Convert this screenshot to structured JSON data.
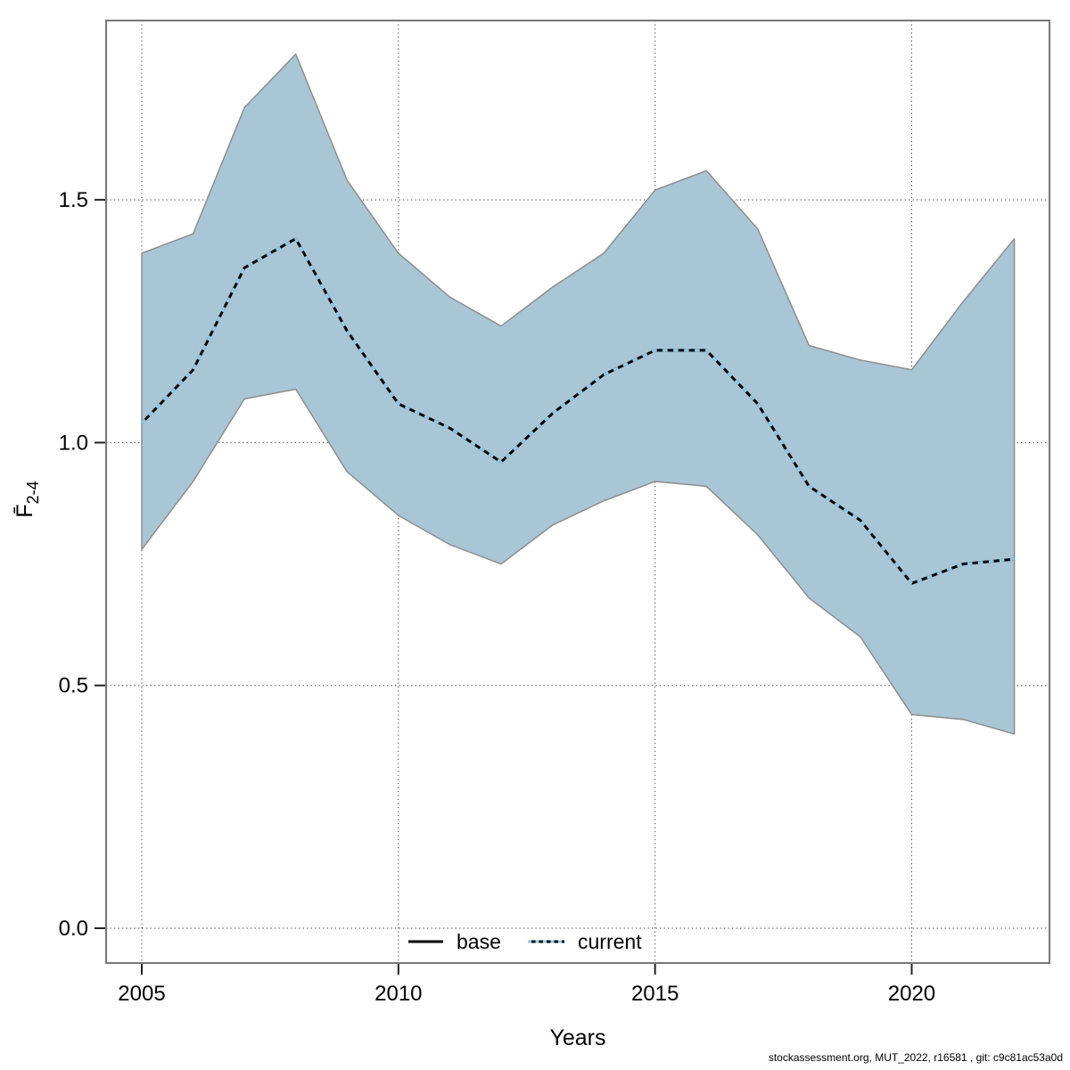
{
  "chart_data": {
    "type": "line",
    "title": "",
    "xlabel": "Years",
    "ylabel": "F̄2-4",
    "ylabel_main": "F̄",
    "ylabel_sub": "2-4",
    "x": [
      2005,
      2006,
      2007,
      2008,
      2009,
      2010,
      2011,
      2012,
      2013,
      2014,
      2015,
      2016,
      2017,
      2018,
      2019,
      2020,
      2021,
      2022
    ],
    "x_ticks": [
      2005,
      2010,
      2015,
      2020
    ],
    "y_ticks": [
      0.0,
      0.5,
      1.0,
      1.5
    ],
    "y_tick_labels": [
      "0.0",
      "0.5",
      "1.0",
      "1.5"
    ],
    "xlim": [
      2004.3,
      2022.7
    ],
    "ylim": [
      -0.07,
      1.87
    ],
    "grid": "dotted",
    "legend_position": "bottom-center-inside",
    "series": [
      {
        "name": "base",
        "line": "solid",
        "color": "#000000",
        "values": [
          1.04,
          1.15,
          1.36,
          1.42,
          1.23,
          1.08,
          1.03,
          0.96,
          1.06,
          1.14,
          1.19,
          1.19,
          1.08,
          0.91,
          0.84,
          0.71,
          0.75,
          0.76
        ]
      },
      {
        "name": "current",
        "line": "dotted",
        "color": "#8fcbe8",
        "values": [
          1.04,
          1.15,
          1.36,
          1.42,
          1.23,
          1.08,
          1.03,
          0.96,
          1.06,
          1.14,
          1.19,
          1.19,
          1.08,
          0.91,
          0.84,
          0.71,
          0.75,
          0.76
        ]
      }
    ],
    "band": {
      "name": "confidence-interval",
      "fill": "#a9c6d7",
      "edge": "#8d8d8d",
      "lower": [
        0.78,
        0.92,
        1.09,
        1.11,
        0.94,
        0.85,
        0.79,
        0.75,
        0.83,
        0.88,
        0.92,
        0.91,
        0.81,
        0.68,
        0.6,
        0.44,
        0.43,
        0.4
      ],
      "upper": [
        1.39,
        1.43,
        1.69,
        1.8,
        1.54,
        1.39,
        1.3,
        1.24,
        1.32,
        1.39,
        1.52,
        1.56,
        1.44,
        1.2,
        1.17,
        1.15,
        1.29,
        1.42
      ]
    }
  },
  "legend": {
    "items": [
      {
        "label": "base"
      },
      {
        "label": "current"
      }
    ]
  },
  "footer": {
    "text": "stockassessment.org, MUT_2022, r16581 , git: c9c81ac53a0d"
  },
  "colors": {
    "frame": "#777777",
    "grid": "#3f3f3f",
    "tick": "#222222",
    "background": "#ffffff"
  }
}
